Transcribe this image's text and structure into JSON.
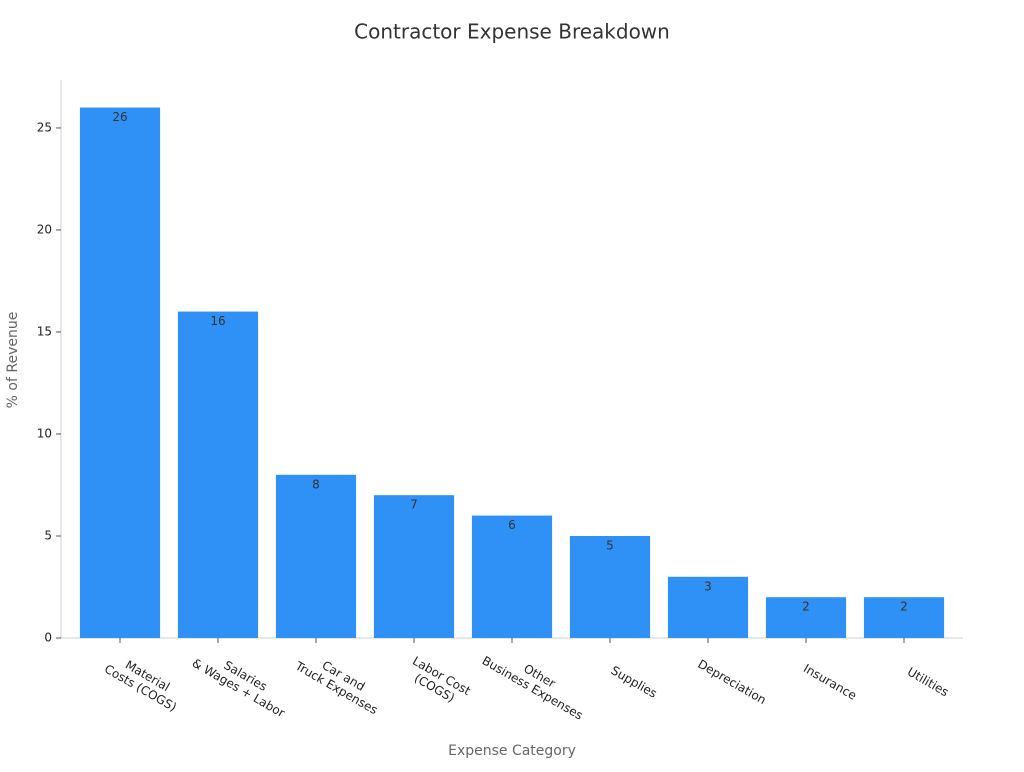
{
  "chart_data": {
    "type": "bar",
    "title": "Contractor Expense Breakdown",
    "x_label": "Expense Category",
    "y_label": "% of Revenue",
    "categories": [
      "Material\nCosts (COGS)",
      "Salaries\n& Wages + Labor",
      "Car and\nTruck Expenses",
      "Labor Cost\n(COGS)",
      "Other\nBusiness Expenses",
      "Supplies",
      "Depreciation",
      "Insurance",
      "Utilities"
    ],
    "values": [
      26,
      16,
      8,
      7,
      6,
      5,
      3,
      2,
      2
    ],
    "color": "#2f91f5",
    "ylim": [
      0,
      27.35
    ],
    "yticks": [
      0,
      5,
      10,
      15,
      20,
      25
    ],
    "grid": false
  }
}
